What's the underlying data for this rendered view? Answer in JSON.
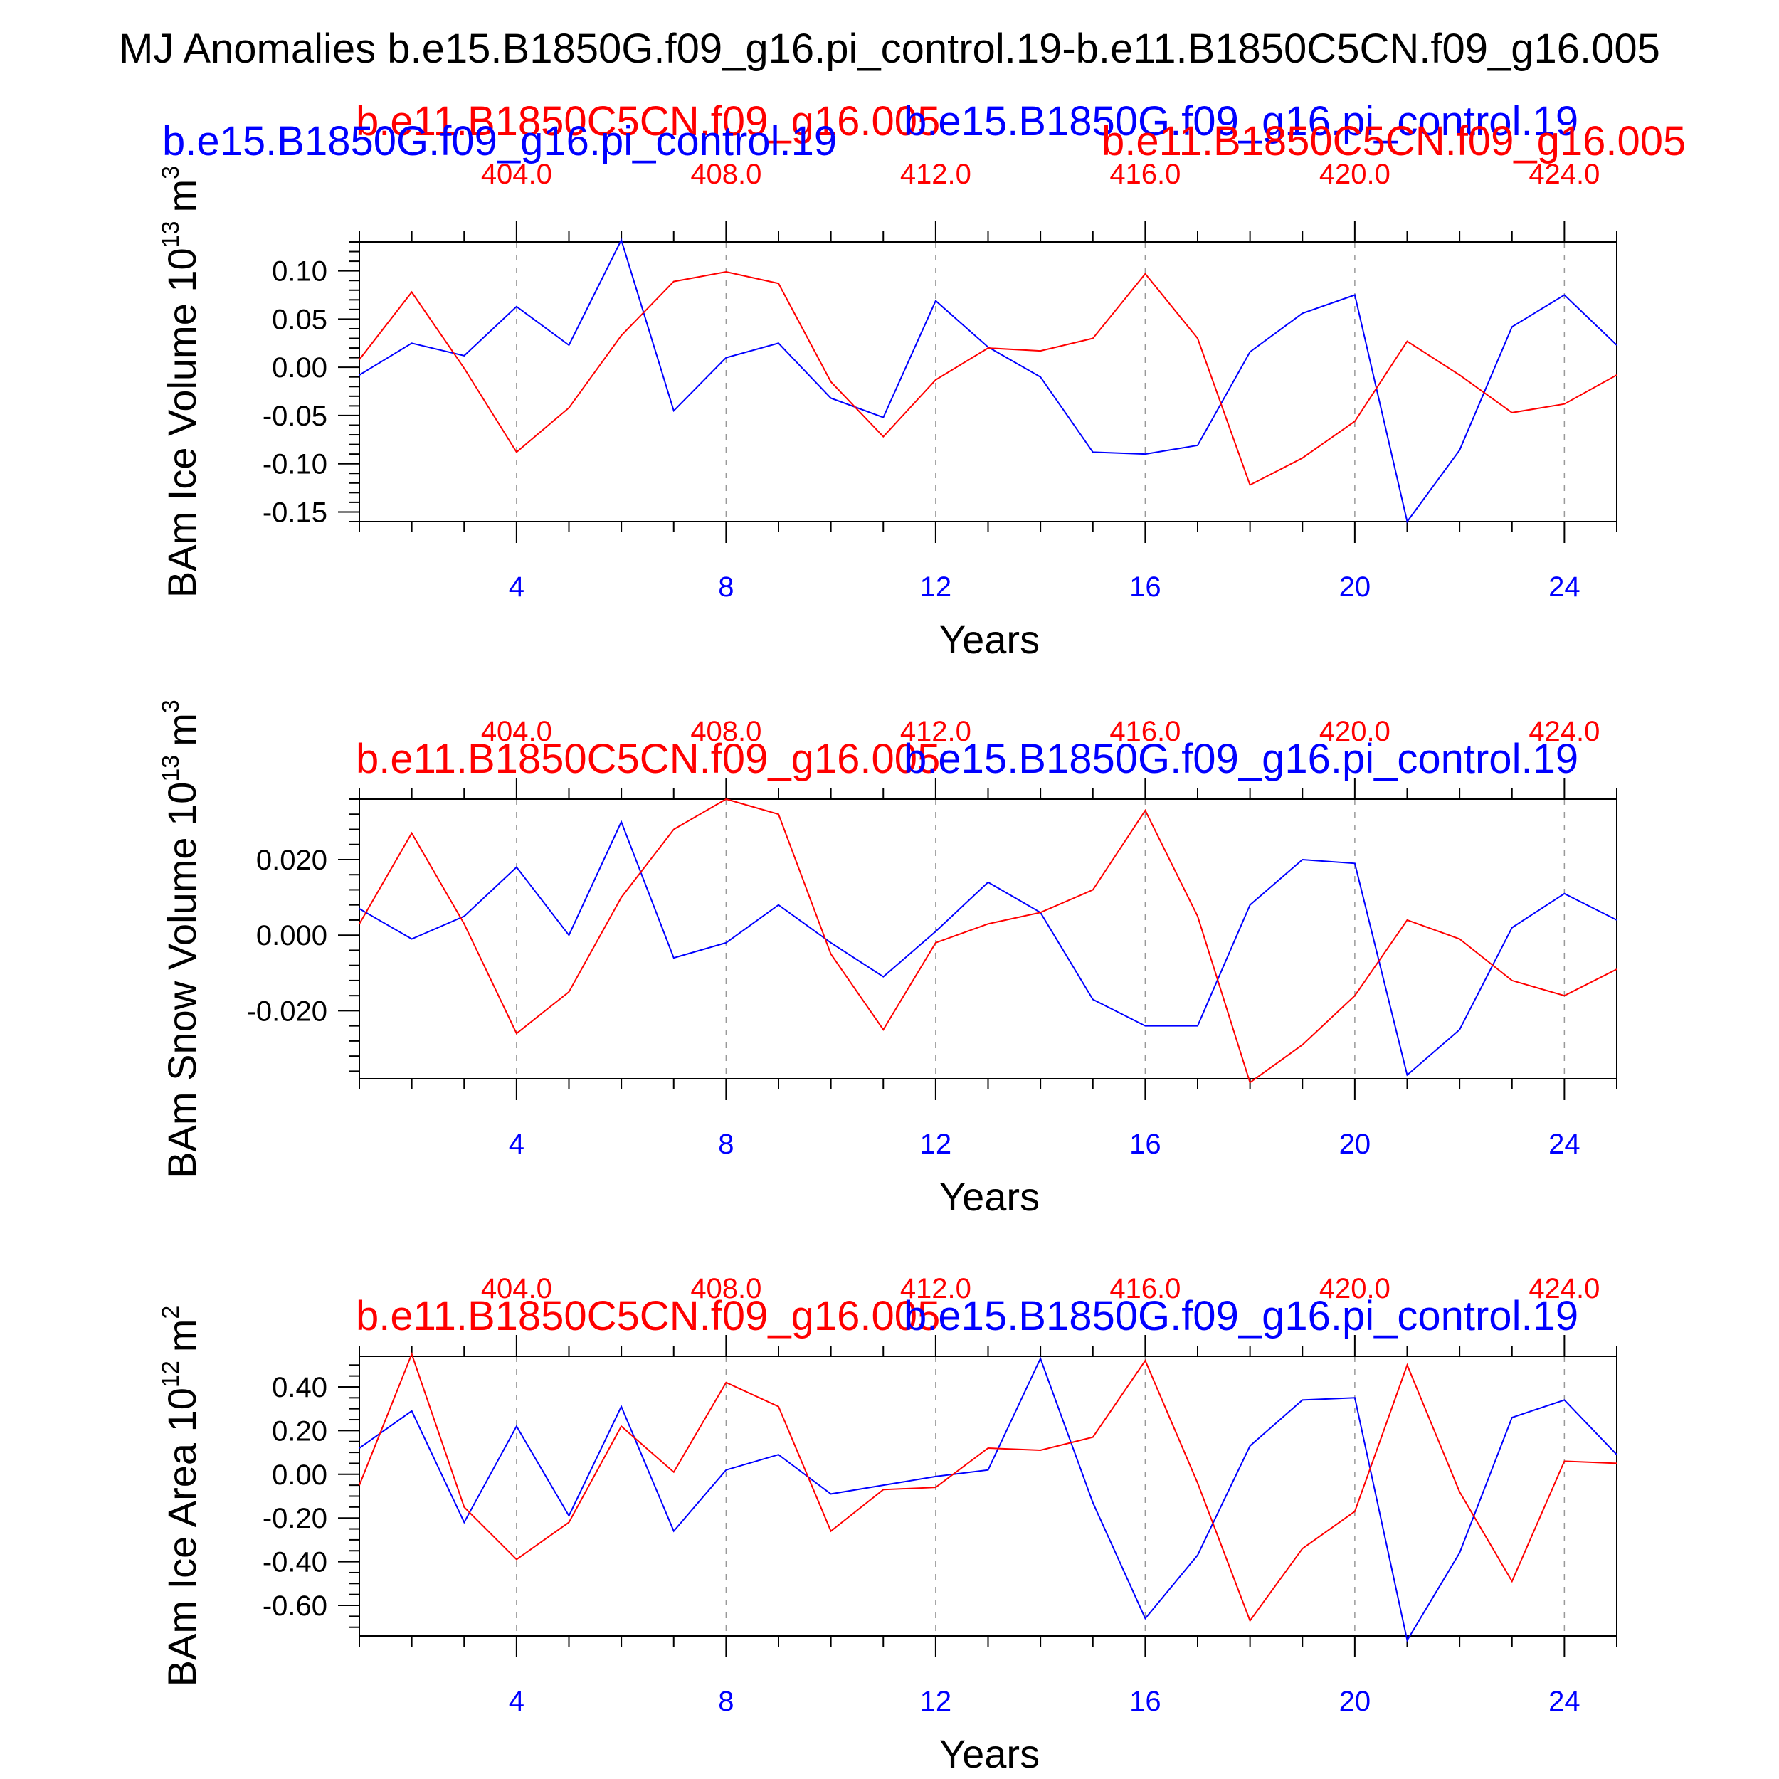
{
  "title": "MJ Anomalies b.e15.B1850G.f09_g16.pi_control.19-b.e11.B1850C5CN.f09_g16.005",
  "colors": {
    "case1": "#0000ff",
    "case2": "#ff0000",
    "axis": "#000000",
    "grid": "#999999"
  },
  "case1_name": "b.e15.B1850G.f09_g16.pi_control.19",
  "case2_name": "b.e11.B1850C5CN.f09_g16.005",
  "chart_data": [
    {
      "type": "line",
      "ylabel": "BAm Ice Volume 10",
      "yunit_exp": "13",
      "yunit_base": "m",
      "yunit_pow": "3",
      "xlabel": "Years",
      "xlim": [
        1,
        25
      ],
      "ylim": [
        -0.16,
        0.13
      ],
      "yticks": [
        -0.15,
        -0.1,
        -0.05,
        0.0,
        0.05,
        0.1
      ],
      "ytick_labels": [
        "-0.15",
        "-0.10",
        "-0.05",
        "0.00",
        "0.05",
        "0.10"
      ],
      "yminor_step": 0.01,
      "xticks": [
        4,
        8,
        12,
        16,
        20,
        24
      ],
      "xtick_labels": [
        "4",
        "8",
        "12",
        "16",
        "20",
        "24"
      ],
      "top_xtick_labels": [
        "404.0",
        "408.0",
        "412.0",
        "416.0",
        "420.0",
        "424.0"
      ],
      "x": [
        1,
        2,
        3,
        4,
        5,
        6,
        7,
        8,
        9,
        10,
        11,
        12,
        13,
        14,
        15,
        16,
        17,
        18,
        19,
        20,
        21,
        22,
        23,
        24,
        25
      ],
      "series": [
        {
          "name": "b.e15.B1850G.f09_g16.pi_control.19",
          "color": "#0000ff",
          "values": [
            -0.008,
            0.025,
            0.012,
            0.063,
            0.023,
            0.132,
            -0.045,
            0.01,
            0.025,
            -0.032,
            -0.052,
            0.069,
            0.021,
            -0.01,
            -0.088,
            -0.09,
            -0.081,
            0.016,
            0.056,
            0.075,
            -0.16,
            -0.086,
            0.042,
            0.075,
            0.023
          ]
        },
        {
          "name": "b.e11.B1850C5CN.f09_g16.005",
          "color": "#ff0000",
          "values": [
            0.008,
            0.078,
            -0.001,
            -0.088,
            -0.042,
            0.033,
            0.089,
            0.099,
            0.087,
            -0.015,
            -0.072,
            -0.013,
            0.02,
            0.017,
            0.03,
            0.097,
            0.03,
            -0.122,
            -0.094,
            -0.056,
            0.027,
            -0.008,
            -0.047,
            -0.038,
            -0.008
          ]
        }
      ]
    },
    {
      "type": "line",
      "ylabel": "BAm Snow Volume 10",
      "yunit_exp": "13",
      "yunit_base": "m",
      "yunit_pow": "3",
      "xlabel": "Years",
      "xlim": [
        1,
        25
      ],
      "ylim": [
        -0.038,
        0.036
      ],
      "yticks": [
        -0.02,
        0.0,
        0.02
      ],
      "ytick_labels": [
        "-0.020",
        "0.000",
        "0.020"
      ],
      "yminor_step": 0.004,
      "xticks": [
        4,
        8,
        12,
        16,
        20,
        24
      ],
      "xtick_labels": [
        "4",
        "8",
        "12",
        "16",
        "20",
        "24"
      ],
      "top_xtick_labels": [
        "404.0",
        "408.0",
        "412.0",
        "416.0",
        "420.0",
        "424.0"
      ],
      "x": [
        1,
        2,
        3,
        4,
        5,
        6,
        7,
        8,
        9,
        10,
        11,
        12,
        13,
        14,
        15,
        16,
        17,
        18,
        19,
        20,
        21,
        22,
        23,
        24,
        25
      ],
      "series": [
        {
          "name": "b.e15.B1850G.f09_g16.pi_control.19",
          "color": "#0000ff",
          "values": [
            0.007,
            -0.001,
            0.005,
            0.018,
            0.0,
            0.03,
            -0.006,
            -0.002,
            0.008,
            -0.002,
            -0.011,
            0.001,
            0.014,
            0.006,
            -0.017,
            -0.024,
            -0.024,
            0.008,
            0.02,
            0.019,
            -0.037,
            -0.025,
            0.002,
            0.011,
            0.004
          ]
        },
        {
          "name": "b.e11.B1850C5CN.f09_g16.005",
          "color": "#ff0000",
          "values": [
            0.003,
            0.027,
            0.003,
            -0.026,
            -0.015,
            0.01,
            0.028,
            0.036,
            0.032,
            -0.005,
            -0.025,
            -0.002,
            0.003,
            0.006,
            0.012,
            0.033,
            0.005,
            -0.039,
            -0.029,
            -0.016,
            0.004,
            -0.001,
            -0.012,
            -0.016,
            -0.009
          ]
        }
      ]
    },
    {
      "type": "line",
      "ylabel": "BAm Ice Area 10",
      "yunit_exp": "12",
      "yunit_base": "m",
      "yunit_pow": "2",
      "xlabel": "Years",
      "xlim": [
        1,
        25
      ],
      "ylim": [
        -0.74,
        0.54
      ],
      "yticks": [
        -0.6,
        -0.4,
        -0.2,
        0.0,
        0.2,
        0.4
      ],
      "ytick_labels": [
        "-0.60",
        "-0.40",
        "-0.20",
        "0.00",
        "0.20",
        "0.40"
      ],
      "yminor_step": 0.05,
      "xticks": [
        4,
        8,
        12,
        16,
        20,
        24
      ],
      "xtick_labels": [
        "4",
        "8",
        "12",
        "16",
        "20",
        "24"
      ],
      "top_xtick_labels": [
        "404.0",
        "408.0",
        "412.0",
        "416.0",
        "420.0",
        "424.0"
      ],
      "x": [
        1,
        2,
        3,
        4,
        5,
        6,
        7,
        8,
        9,
        10,
        11,
        12,
        13,
        14,
        15,
        16,
        17,
        18,
        19,
        20,
        21,
        22,
        23,
        24,
        25
      ],
      "series": [
        {
          "name": "b.e15.B1850G.f09_g16.pi_control.19",
          "color": "#0000ff",
          "values": [
            0.12,
            0.29,
            -0.22,
            0.22,
            -0.19,
            0.31,
            -0.26,
            0.02,
            0.09,
            -0.09,
            -0.05,
            -0.01,
            0.02,
            0.53,
            -0.13,
            -0.66,
            -0.37,
            0.13,
            0.34,
            0.35,
            -0.76,
            -0.36,
            0.26,
            0.34,
            0.09
          ]
        },
        {
          "name": "b.e11.B1850C5CN.f09_g16.005",
          "color": "#ff0000",
          "values": [
            -0.05,
            0.55,
            -0.15,
            -0.39,
            -0.22,
            0.22,
            0.01,
            0.42,
            0.31,
            -0.26,
            -0.07,
            -0.06,
            0.12,
            0.11,
            0.17,
            0.52,
            -0.04,
            -0.67,
            -0.34,
            -0.17,
            0.5,
            -0.08,
            -0.49,
            0.06,
            0.05
          ]
        }
      ]
    }
  ]
}
